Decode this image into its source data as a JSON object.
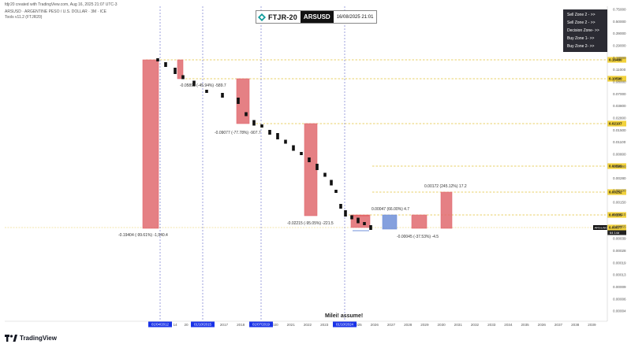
{
  "top_note": "fdjr20 created with TradingView.com, Aug 16, 2025 21:07 UTC-3",
  "legend_line1": "ARSUSD · ARGENTINE PESO / U.S. DOLLAR · 3M · ICE",
  "legend_line2": "Tools v11.2 (FTJR20)",
  "header": {
    "symbol": "FTJR-20",
    "pair": "ARSUSD",
    "date": "16/08/2025 21:01"
  },
  "zones": [
    {
      "label": "Sell Zone 2 - >>"
    },
    {
      "label": "Sell Zone 2 - >>"
    },
    {
      "label": "Decision Zone- >>"
    },
    {
      "label": "Buy Zone 1- >>"
    },
    {
      "label": "Buy Zone 2- >>"
    }
  ],
  "footer": {
    "brand": "TradingView",
    "caption": "Milei! assume!"
  },
  "colors": {
    "bear_box": "#e06a6f",
    "bull_box": "#6f8fd8",
    "candle": "#111111",
    "level_line": "#e3c23a",
    "level_label_bg": "#f2d23c",
    "vline": "#5b63c9",
    "date_badge": "#1a33e8"
  },
  "chart_data": {
    "type": "candlestick",
    "title": "",
    "xlabel": "",
    "ylabel": "",
    "x_ticks": [
      "2017",
      "2018",
      "2019",
      "2020",
      "2021",
      "2022",
      "2023",
      "2024",
      "2025",
      "2026",
      "2027",
      "2028",
      "2029",
      "2030",
      "2031",
      "2032",
      "2033",
      "2034",
      "2035",
      "2036",
      "2037",
      "2038",
      "2039"
    ],
    "date_badges": [
      "01/04/2012",
      "01/10/2015",
      "01/07/2019",
      "01/10/2024"
    ],
    "y_ticks": [
      {
        "label": "0.75000"
      },
      {
        "label": "0.50000"
      },
      {
        "label": "0.39000"
      },
      {
        "label": "0.29000"
      },
      {
        "label": "0.18000"
      },
      {
        "label": "0.11000"
      },
      {
        "label": "0.08000"
      },
      {
        "label": "0.07000"
      },
      {
        "label": "0.03800"
      },
      {
        "label": "0.02800"
      },
      {
        "label": "0.01500"
      },
      {
        "label": "0.01100"
      },
      {
        "label": "0.00800"
      },
      {
        "label": "0.00390"
      },
      {
        "label": "0.00280"
      },
      {
        "label": "0.00190"
      },
      {
        "label": "0.00150"
      },
      {
        "label": "0.00110"
      },
      {
        "label": "0.00055"
      },
      {
        "label": "0.00039"
      },
      {
        "label": "0.00028"
      },
      {
        "label": "0.00019"
      },
      {
        "label": "0.00013"
      },
      {
        "label": "0.00009"
      },
      {
        "label": "0.00006"
      },
      {
        "label": "0.00004"
      }
    ],
    "levels": [
      {
        "label": "0.16480"
      },
      {
        "label": "0.10590"
      },
      {
        "label": "0.02107"
      },
      {
        "label": "0.00599"
      },
      {
        "label": "0.00252"
      },
      {
        "label": "0.00105"
      },
      {
        "label": "0.00077"
      }
    ],
    "current": {
      "label": "ARSUSD",
      "sub": "64 14d"
    },
    "annotations": [
      {
        "text": "-0.05897 (-45.94%) -589.7"
      },
      {
        "text": "-0.09077 (-77.78%) -907.7"
      },
      {
        "text": "-0.19404 (-99.61%) -1,940.4"
      },
      {
        "text": "-0.02215 (-95.05%) -221.5"
      },
      {
        "text": "0.00047 (66.00%) 4.7"
      },
      {
        "text": "0.00172 (245.12%) 17.2"
      },
      {
        "text": "-0.00045 (-37.53%) -4.5"
      }
    ]
  }
}
